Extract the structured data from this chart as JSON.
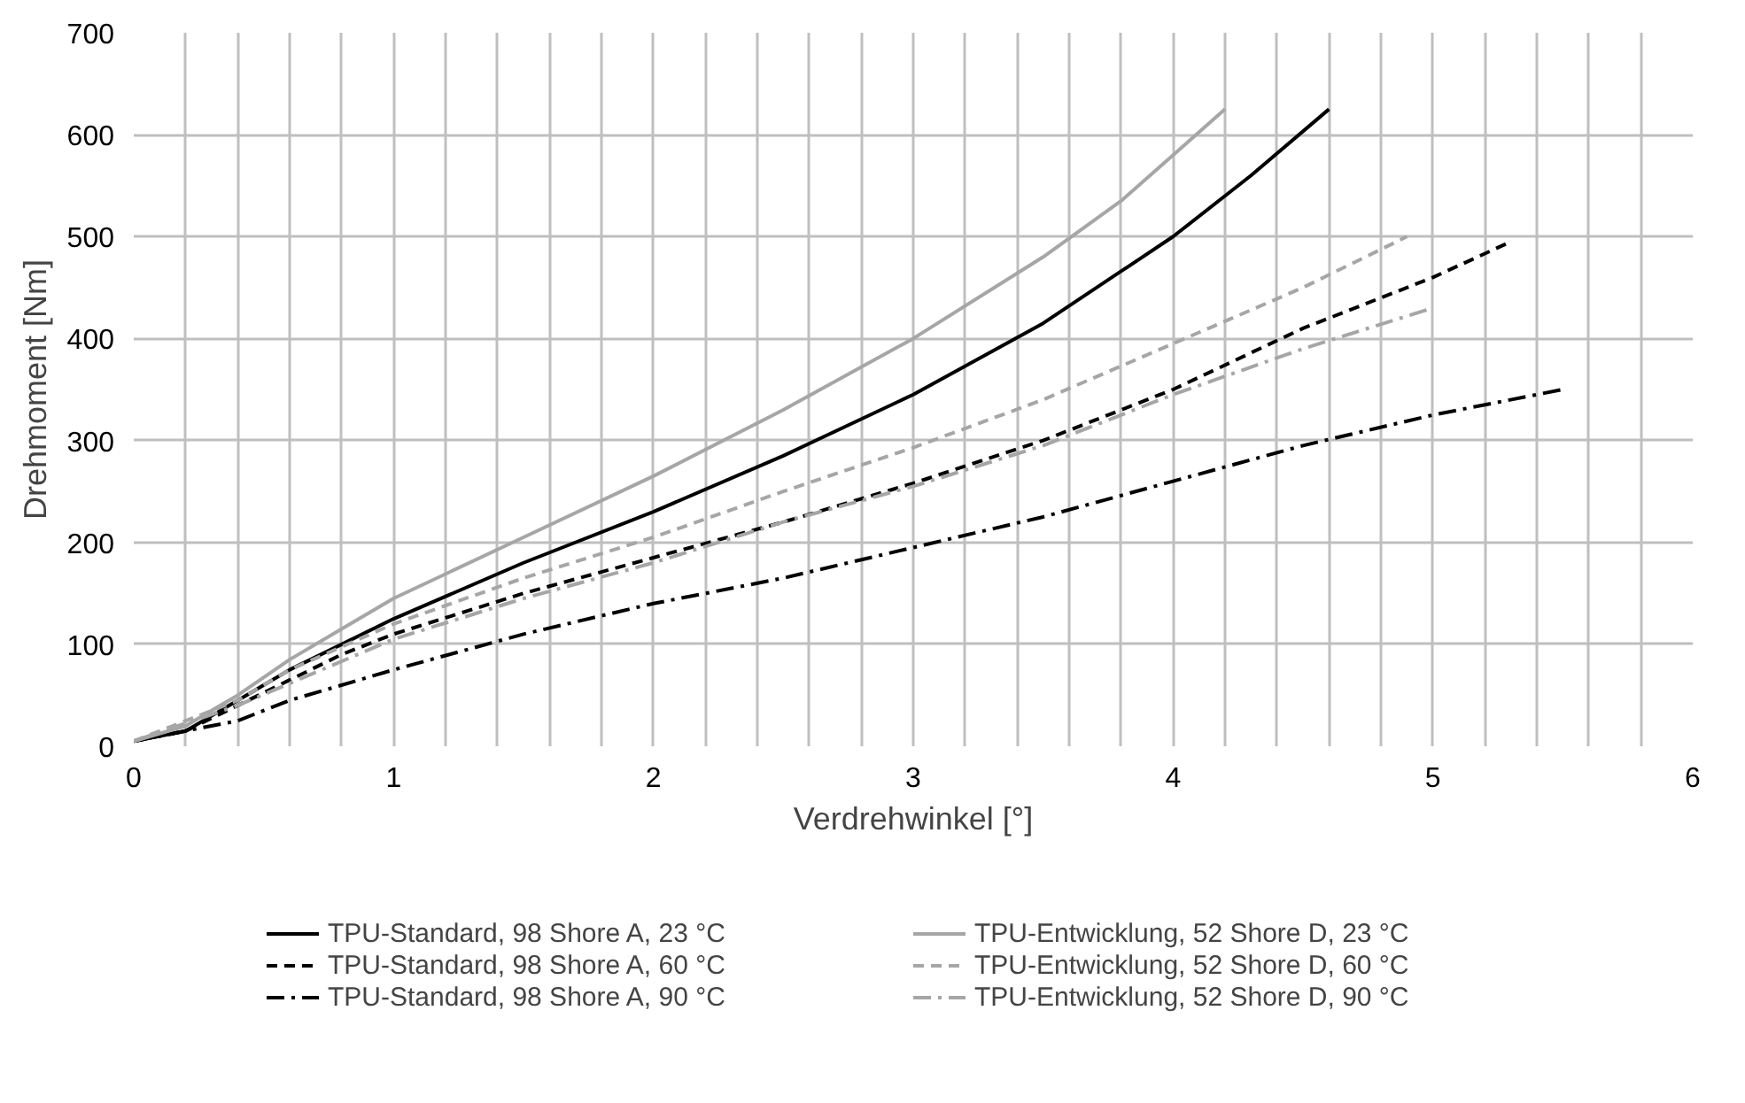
{
  "chart_data": {
    "type": "line",
    "xlabel": "Verdrehwinkel [°]",
    "ylabel": "Drehmoment [Nm]",
    "xlim": [
      0,
      6
    ],
    "ylim": [
      0,
      700
    ],
    "xticks": [
      0,
      {
        "value": 0.2,
        "label": null
      },
      {
        "value": 0.4,
        "label": null
      },
      {
        "value": 0.6,
        "label": null
      },
      {
        "value": 0.8,
        "label": null
      },
      1,
      {
        "value": 1.2,
        "label": null
      },
      {
        "value": 1.4,
        "label": null
      },
      {
        "value": 1.6,
        "label": null
      },
      {
        "value": 1.8,
        "label": null
      },
      2,
      {
        "value": 2.2,
        "label": null
      },
      {
        "value": 2.4,
        "label": null
      },
      {
        "value": 2.6,
        "label": null
      },
      {
        "value": 2.8,
        "label": null
      },
      3,
      {
        "value": 3.2,
        "label": null
      },
      {
        "value": 3.4,
        "label": null
      },
      {
        "value": 3.6,
        "label": null
      },
      {
        "value": 3.8,
        "label": null
      },
      4,
      {
        "value": 4.2,
        "label": null
      },
      {
        "value": 4.4,
        "label": null
      },
      {
        "value": 4.6,
        "label": null
      },
      {
        "value": 4.8,
        "label": null
      },
      5,
      {
        "value": 5.2,
        "label": null
      },
      {
        "value": 5.4,
        "label": null
      },
      {
        "value": 5.6,
        "label": null
      },
      {
        "value": 5.8,
        "label": null
      },
      6
    ],
    "yticks": [
      0,
      100,
      200,
      300,
      400,
      500,
      600,
      700
    ],
    "grid": true,
    "legend": "bottom",
    "marker": "none",
    "series": [
      {
        "name": "TPU-Standard, 98 Shore A, 23 °C",
        "color": "#000000",
        "line_style": "solid",
        "x": [
          0,
          0.2,
          0.4,
          0.6,
          0.8,
          1,
          1.5,
          2,
          2.5,
          3,
          3.5,
          4,
          4.3,
          4.6
        ],
        "values": [
          5,
          15,
          45,
          75,
          100,
          125,
          180,
          230,
          285,
          345,
          415,
          500,
          560,
          625
        ]
      },
      {
        "name": "TPU-Standard, 98 Shore A, 60 °C",
        "color": "#000000",
        "line_style": "dashed",
        "x": [
          0,
          0.2,
          0.4,
          0.6,
          0.8,
          1,
          1.5,
          2,
          2.5,
          3,
          3.5,
          4,
          4.5,
          5,
          5.3
        ],
        "values": [
          5,
          15,
          40,
          65,
          90,
          110,
          150,
          185,
          220,
          258,
          300,
          350,
          410,
          460,
          495
        ]
      },
      {
        "name": "TPU-Standard, 98 Shore A, 90 °C",
        "color": "#000000",
        "line_style": "dashdot",
        "x": [
          0,
          0.4,
          0.6,
          1,
          1.5,
          2,
          2.5,
          3,
          3.5,
          4,
          4.5,
          5,
          5.5
        ],
        "values": [
          5,
          25,
          45,
          75,
          110,
          140,
          165,
          195,
          225,
          260,
          295,
          325,
          350
        ]
      },
      {
        "name": "TPU-Entwicklung, 52 Shore D, 23 °C",
        "color": "#a6a6a6",
        "line_style": "solid",
        "x": [
          0,
          0.2,
          0.4,
          0.6,
          0.8,
          1,
          1.5,
          2,
          2.5,
          3,
          3.5,
          3.8,
          4,
          4.2
        ],
        "values": [
          5,
          20,
          50,
          85,
          115,
          145,
          205,
          265,
          330,
          400,
          480,
          535,
          580,
          625
        ]
      },
      {
        "name": "TPU-Entwicklung, 52 Shore D, 60 °C",
        "color": "#a6a6a6",
        "line_style": "dashed",
        "x": [
          0,
          0.4,
          0.6,
          1,
          1.5,
          2,
          2.5,
          3,
          3.5,
          4,
          4.5,
          4.9
        ],
        "values": [
          5,
          45,
          75,
          120,
          165,
          205,
          250,
          293,
          340,
          395,
          450,
          500
        ]
      },
      {
        "name": "TPU-Entwicklung, 52 Shore D, 90 °C",
        "color": "#a6a6a6",
        "line_style": "dashdot",
        "x": [
          0,
          0.4,
          1,
          1.5,
          2,
          2.5,
          3,
          3.5,
          4,
          4.5,
          5
        ],
        "values": [
          5,
          40,
          105,
          145,
          180,
          220,
          255,
          295,
          345,
          390,
          430
        ]
      }
    ]
  }
}
